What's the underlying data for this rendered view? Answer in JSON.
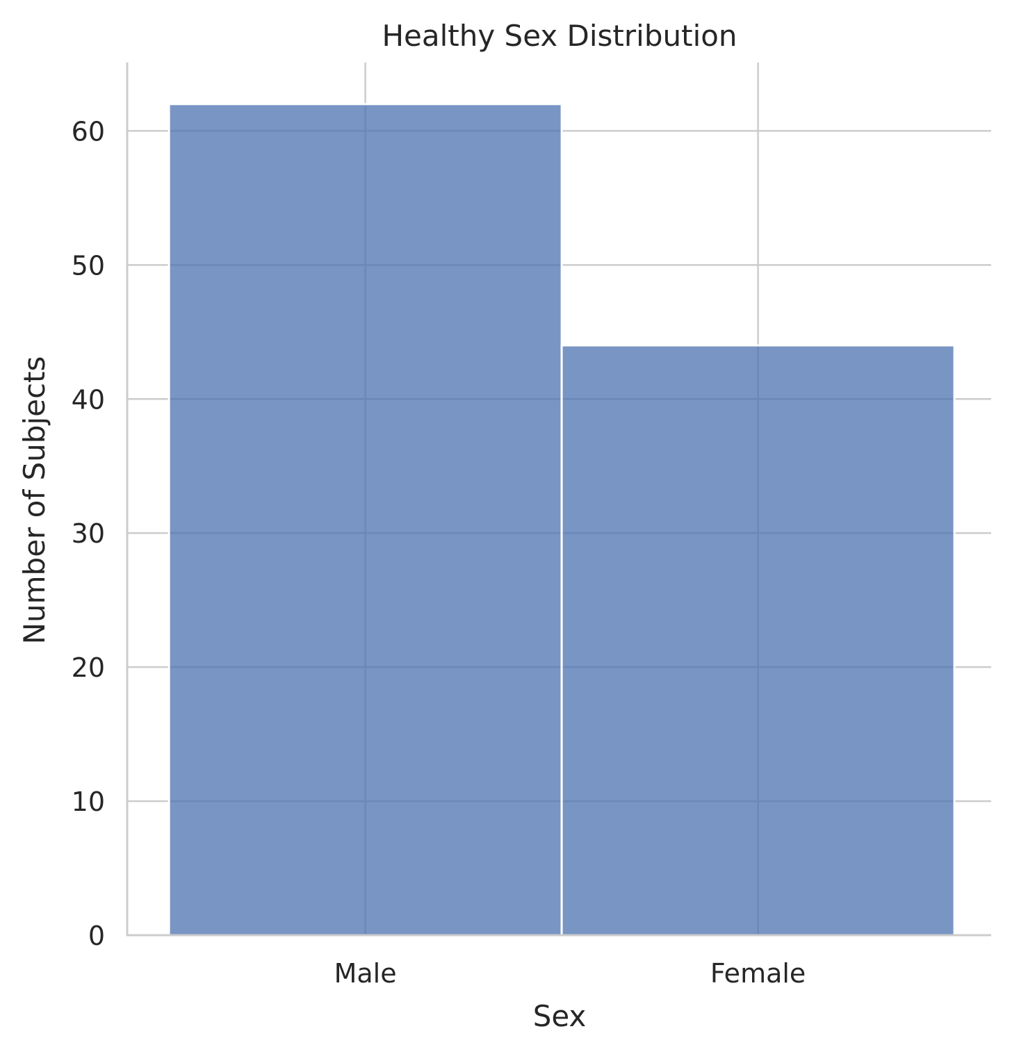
{
  "chart_data": {
    "type": "bar",
    "title": "Healthy Sex Distribution",
    "xlabel": "Sex",
    "ylabel": "Number of Subjects",
    "categories": [
      "Male",
      "Female"
    ],
    "values": [
      62,
      44
    ],
    "ylim": [
      0,
      65.1
    ],
    "yticks": [
      0,
      10,
      20,
      30,
      40,
      50,
      60
    ],
    "grid": true,
    "legend": "none",
    "colors": {
      "bar": "#4c72b0",
      "bar_opacity": 0.75,
      "grid": "#cccccc",
      "spine": "#cccccc",
      "text": "#262626"
    }
  }
}
